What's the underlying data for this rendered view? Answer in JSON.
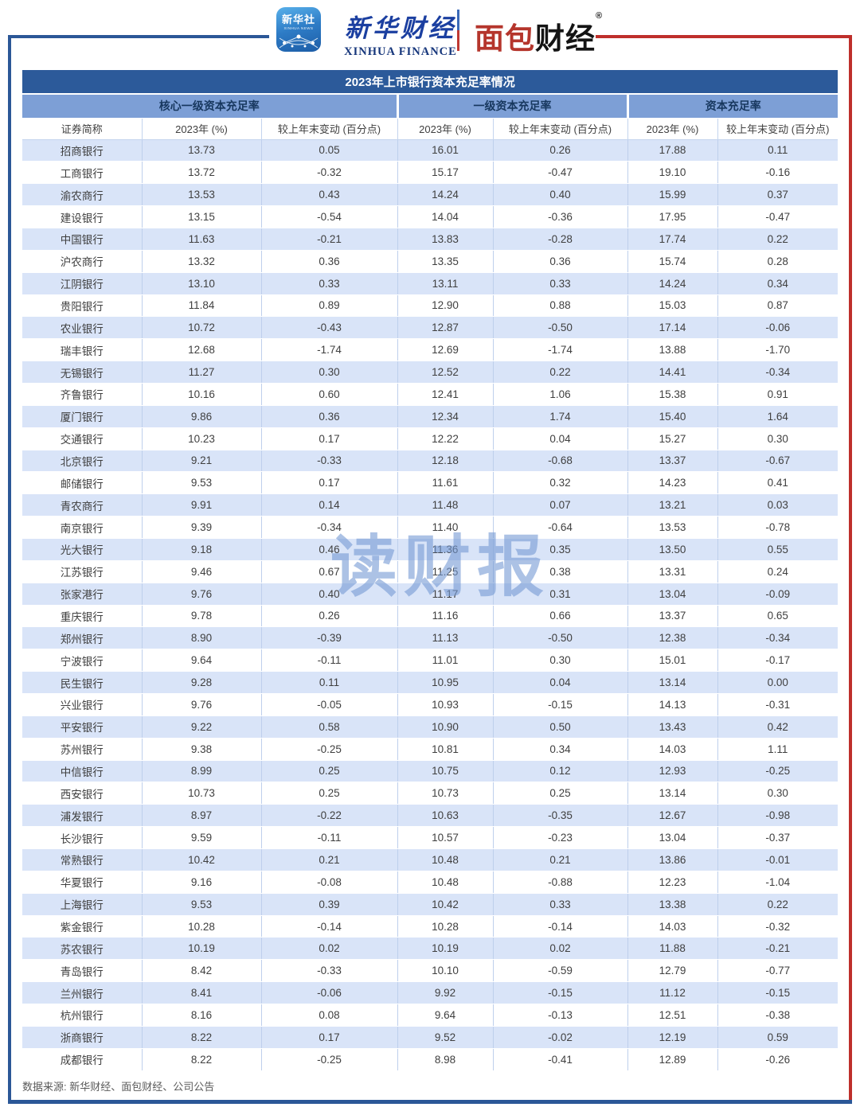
{
  "logos": {
    "badge_cn": "新华社",
    "badge_en": "XINHUA NEWS",
    "finance_cn": "新华财经",
    "finance_en": "XINHUA FINANCE",
    "bread_red": "面包",
    "bread_black": "财经",
    "bread_reg": "®"
  },
  "watermark": {
    "text": "读财报"
  },
  "footer": {
    "source": "数据来源: 新华财经、面包财经、公司公告"
  },
  "colors": {
    "title_bar": "#2C5A9A",
    "group_header_bg": "#7D9FD6",
    "group_header_text": "#17375E",
    "row_stripe": "#D9E4F8",
    "frame_blue": "#2B5797",
    "frame_red": "#BE2F2B",
    "bread_red": "#B5352C",
    "xinhua_blue": "#1B3FA0"
  },
  "chart_data": {
    "type": "table",
    "title": "2023年上市银行资本充足率情况",
    "group_headers": [
      {
        "label": "核心一级资本充足率",
        "span": 3
      },
      {
        "label": "一级资本充足率",
        "span": 2
      },
      {
        "label": "资本充足率",
        "span": 2
      }
    ],
    "columns": [
      "证券简称",
      "2023年 (%)",
      "较上年末变动 (百分点)",
      "2023年 (%)",
      "较上年末变动 (百分点)",
      "2023年 (%)",
      "较上年末变动 (百分点)"
    ],
    "rows": [
      [
        "招商银行",
        "13.73",
        "0.05",
        "16.01",
        "0.26",
        "17.88",
        "0.11"
      ],
      [
        "工商银行",
        "13.72",
        "-0.32",
        "15.17",
        "-0.47",
        "19.10",
        "-0.16"
      ],
      [
        "渝农商行",
        "13.53",
        "0.43",
        "14.24",
        "0.40",
        "15.99",
        "0.37"
      ],
      [
        "建设银行",
        "13.15",
        "-0.54",
        "14.04",
        "-0.36",
        "17.95",
        "-0.47"
      ],
      [
        "中国银行",
        "11.63",
        "-0.21",
        "13.83",
        "-0.28",
        "17.74",
        "0.22"
      ],
      [
        "沪农商行",
        "13.32",
        "0.36",
        "13.35",
        "0.36",
        "15.74",
        "0.28"
      ],
      [
        "江阴银行",
        "13.10",
        "0.33",
        "13.11",
        "0.33",
        "14.24",
        "0.34"
      ],
      [
        "贵阳银行",
        "11.84",
        "0.89",
        "12.90",
        "0.88",
        "15.03",
        "0.87"
      ],
      [
        "农业银行",
        "10.72",
        "-0.43",
        "12.87",
        "-0.50",
        "17.14",
        "-0.06"
      ],
      [
        "瑞丰银行",
        "12.68",
        "-1.74",
        "12.69",
        "-1.74",
        "13.88",
        "-1.70"
      ],
      [
        "无锡银行",
        "11.27",
        "0.30",
        "12.52",
        "0.22",
        "14.41",
        "-0.34"
      ],
      [
        "齐鲁银行",
        "10.16",
        "0.60",
        "12.41",
        "1.06",
        "15.38",
        "0.91"
      ],
      [
        "厦门银行",
        "9.86",
        "0.36",
        "12.34",
        "1.74",
        "15.40",
        "1.64"
      ],
      [
        "交通银行",
        "10.23",
        "0.17",
        "12.22",
        "0.04",
        "15.27",
        "0.30"
      ],
      [
        "北京银行",
        "9.21",
        "-0.33",
        "12.18",
        "-0.68",
        "13.37",
        "-0.67"
      ],
      [
        "邮储银行",
        "9.53",
        "0.17",
        "11.61",
        "0.32",
        "14.23",
        "0.41"
      ],
      [
        "青农商行",
        "9.91",
        "0.14",
        "11.48",
        "0.07",
        "13.21",
        "0.03"
      ],
      [
        "南京银行",
        "9.39",
        "-0.34",
        "11.40",
        "-0.64",
        "13.53",
        "-0.78"
      ],
      [
        "光大银行",
        "9.18",
        "0.46",
        "11.36",
        "0.35",
        "13.50",
        "0.55"
      ],
      [
        "江苏银行",
        "9.46",
        "0.67",
        "11.25",
        "0.38",
        "13.31",
        "0.24"
      ],
      [
        "张家港行",
        "9.76",
        "0.40",
        "11.17",
        "0.31",
        "13.04",
        "-0.09"
      ],
      [
        "重庆银行",
        "9.78",
        "0.26",
        "11.16",
        "0.66",
        "13.37",
        "0.65"
      ],
      [
        "郑州银行",
        "8.90",
        "-0.39",
        "11.13",
        "-0.50",
        "12.38",
        "-0.34"
      ],
      [
        "宁波银行",
        "9.64",
        "-0.11",
        "11.01",
        "0.30",
        "15.01",
        "-0.17"
      ],
      [
        "民生银行",
        "9.28",
        "0.11",
        "10.95",
        "0.04",
        "13.14",
        "0.00"
      ],
      [
        "兴业银行",
        "9.76",
        "-0.05",
        "10.93",
        "-0.15",
        "14.13",
        "-0.31"
      ],
      [
        "平安银行",
        "9.22",
        "0.58",
        "10.90",
        "0.50",
        "13.43",
        "0.42"
      ],
      [
        "苏州银行",
        "9.38",
        "-0.25",
        "10.81",
        "0.34",
        "14.03",
        "1.11"
      ],
      [
        "中信银行",
        "8.99",
        "0.25",
        "10.75",
        "0.12",
        "12.93",
        "-0.25"
      ],
      [
        "西安银行",
        "10.73",
        "0.25",
        "10.73",
        "0.25",
        "13.14",
        "0.30"
      ],
      [
        "浦发银行",
        "8.97",
        "-0.22",
        "10.63",
        "-0.35",
        "12.67",
        "-0.98"
      ],
      [
        "长沙银行",
        "9.59",
        "-0.11",
        "10.57",
        "-0.23",
        "13.04",
        "-0.37"
      ],
      [
        "常熟银行",
        "10.42",
        "0.21",
        "10.48",
        "0.21",
        "13.86",
        "-0.01"
      ],
      [
        "华夏银行",
        "9.16",
        "-0.08",
        "10.48",
        "-0.88",
        "12.23",
        "-1.04"
      ],
      [
        "上海银行",
        "9.53",
        "0.39",
        "10.42",
        "0.33",
        "13.38",
        "0.22"
      ],
      [
        "紫金银行",
        "10.28",
        "-0.14",
        "10.28",
        "-0.14",
        "14.03",
        "-0.32"
      ],
      [
        "苏农银行",
        "10.19",
        "0.02",
        "10.19",
        "0.02",
        "11.88",
        "-0.21"
      ],
      [
        "青岛银行",
        "8.42",
        "-0.33",
        "10.10",
        "-0.59",
        "12.79",
        "-0.77"
      ],
      [
        "兰州银行",
        "8.41",
        "-0.06",
        "9.92",
        "-0.15",
        "11.12",
        "-0.15"
      ],
      [
        "杭州银行",
        "8.16",
        "0.08",
        "9.64",
        "-0.13",
        "12.51",
        "-0.38"
      ],
      [
        "浙商银行",
        "8.22",
        "0.17",
        "9.52",
        "-0.02",
        "12.19",
        "0.59"
      ],
      [
        "成都银行",
        "8.22",
        "-0.25",
        "8.98",
        "-0.41",
        "12.89",
        "-0.26"
      ]
    ]
  }
}
